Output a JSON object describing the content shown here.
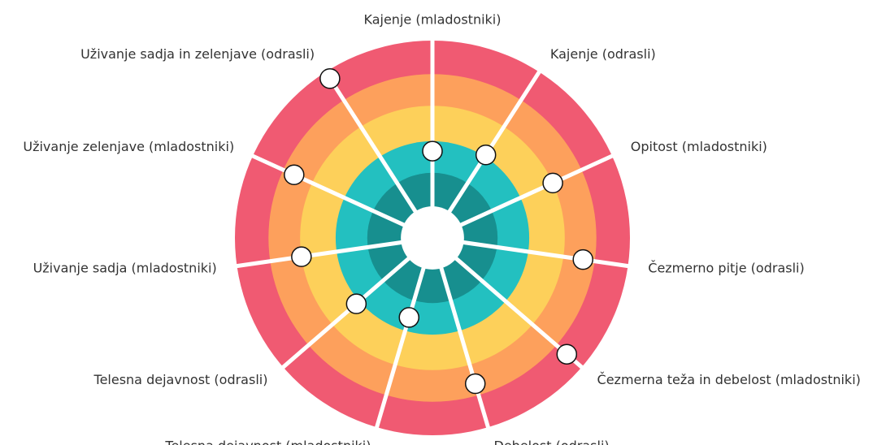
{
  "chart_data": {
    "type": "radial",
    "categories": [
      "Kajenje (mladostniki)",
      "Kajenje (odrasli)",
      "Opitost (mladostniki)",
      "Čezmerno pitje (odrasli)",
      "Čezmerna teža in debelost (mladostniki)",
      "Debelost (odrasli)",
      "Telesna dejavnost (mladostniki)",
      "Telesna dejavnost (odrasli)",
      "Uživanje sadja (mladostniki)",
      "Uživanje zelenjave (mladostniki)",
      "Uživanje sadja in zelenjave (odrasli)"
    ],
    "values": [
      44,
      50,
      67,
      77,
      90,
      77,
      42,
      51,
      67,
      77,
      96
    ],
    "rlim": [
      0,
      100
    ],
    "hole": 16,
    "bands": [
      {
        "to": 33,
        "color": "#178f8f"
      },
      {
        "to": 49,
        "color": "#23c0c0"
      },
      {
        "to": 67,
        "color": "#fdd05a"
      },
      {
        "to": 83,
        "color": "#fda05c"
      },
      {
        "to": 100,
        "color": "#f05a72"
      }
    ],
    "marker_color": "#ffffff"
  }
}
